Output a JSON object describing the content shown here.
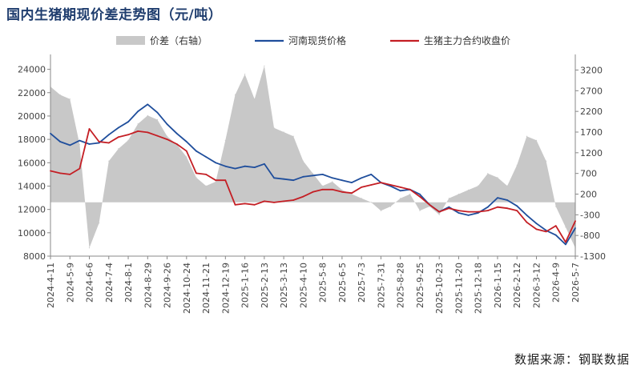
{
  "title": "国内生猪期现价差走势图（元/吨）",
  "source": "数据来源：钢联数据",
  "chart_data": {
    "type": "line",
    "title": "国内生猪期现价差走势图（元/吨）",
    "colors": {
      "basis": "#c8c8c8",
      "spot": "#1f4e9c",
      "futures": "#c41e24"
    },
    "left_axis": {
      "ylim": [
        8000,
        25000
      ],
      "ticks": [
        "8000",
        "10000",
        "12000",
        "14000",
        "16000",
        "18000",
        "20000",
        "22000",
        "24000"
      ]
    },
    "right_axis": {
      "ylim": [
        -1300,
        3500
      ],
      "ticks": [
        "-1300",
        "-800",
        "-300",
        "200",
        "700",
        "1200",
        "1700",
        "2200",
        "2700",
        "3200"
      ]
    },
    "x_ticks": [
      "2024-4-11",
      "2024-5-9",
      "2024-6-6",
      "2024-7-4",
      "2024-8-1",
      "2024-8-29",
      "2024-9-26",
      "2024-10-24",
      "2024-11-21",
      "2024-12-19",
      "2025-1-16",
      "2025-2-13",
      "2025-3-13",
      "2025-4-10",
      "2025-5-8",
      "2025-6-5",
      "2025-7-3",
      "2025-7-31",
      "2025-8-28",
      "2025-9-25",
      "2025-10-23",
      "2025-11-20",
      "2025-12-18",
      "2026-1-15",
      "2026-2-12",
      "2026-3-12",
      "2026-4-9",
      "2026-5-7"
    ],
    "grid": false,
    "legend_position": "top",
    "series": [
      {
        "name": "价差（右轴）",
        "axis": "right",
        "kind": "area",
        "x": [
          "2024-4-11",
          "2024-4-25",
          "2024-5-9",
          "2024-5-23",
          "2024-6-6",
          "2024-6-20",
          "2024-7-4",
          "2024-7-18",
          "2024-8-1",
          "2024-8-15",
          "2024-8-29",
          "2024-9-12",
          "2024-9-26",
          "2024-10-10",
          "2024-10-24",
          "2024-11-7",
          "2024-11-21",
          "2024-12-5",
          "2024-12-19",
          "2025-1-2",
          "2025-1-16",
          "2025-1-30",
          "2025-2-13",
          "2025-2-27",
          "2025-3-13",
          "2025-3-27",
          "2025-4-10",
          "2025-4-24",
          "2025-5-8",
          "2025-5-22",
          "2025-6-5",
          "2025-6-19",
          "2025-7-3",
          "2025-7-17",
          "2025-7-31",
          "2025-8-14",
          "2025-8-28",
          "2025-9-11",
          "2025-9-25",
          "2025-10-9",
          "2025-10-23",
          "2025-11-6",
          "2025-11-20",
          "2025-12-4",
          "2025-12-18",
          "2026-1-1",
          "2026-1-15",
          "2026-1-29",
          "2026-2-12",
          "2026-2-26",
          "2026-3-12",
          "2026-3-26",
          "2026-4-9",
          "2026-4-23",
          "2026-5-7"
        ],
        "values": [
          2800,
          2600,
          2500,
          1400,
          -1100,
          -500,
          1000,
          1300,
          1500,
          1900,
          2100,
          2000,
          1600,
          1400,
          1100,
          600,
          400,
          500,
          1500,
          2600,
          3100,
          2500,
          3300,
          1800,
          1700,
          1600,
          1000,
          700,
          400,
          500,
          300,
          200,
          100,
          0,
          -200,
          -100,
          100,
          200,
          -200,
          -100,
          -300,
          100,
          200,
          300,
          400,
          700,
          600,
          400,
          900,
          1600,
          1500,
          1000,
          -100,
          -600,
          -1100
        ]
      },
      {
        "name": "河南现货价格",
        "axis": "left",
        "kind": "line",
        "x": [
          "2024-4-11",
          "2024-4-25",
          "2024-5-9",
          "2024-5-23",
          "2024-6-6",
          "2024-6-20",
          "2024-7-4",
          "2024-7-18",
          "2024-8-1",
          "2024-8-15",
          "2024-8-29",
          "2024-9-12",
          "2024-9-26",
          "2024-10-10",
          "2024-10-24",
          "2024-11-7",
          "2024-11-21",
          "2024-12-5",
          "2024-12-19",
          "2025-1-2",
          "2025-1-16",
          "2025-1-30",
          "2025-2-13",
          "2025-2-27",
          "2025-3-13",
          "2025-3-27",
          "2025-4-10",
          "2025-4-24",
          "2025-5-8",
          "2025-5-22",
          "2025-6-5",
          "2025-6-19",
          "2025-7-3",
          "2025-7-17",
          "2025-7-31",
          "2025-8-14",
          "2025-8-28",
          "2025-9-11",
          "2025-9-25",
          "2025-10-9",
          "2025-10-23",
          "2025-11-6",
          "2025-11-20",
          "2025-12-4",
          "2025-12-18",
          "2026-1-1",
          "2026-1-15",
          "2026-1-29",
          "2026-2-12",
          "2026-2-26",
          "2026-3-12",
          "2026-3-26",
          "2026-4-9",
          "2026-4-23",
          "2026-5-7"
        ],
        "values": [
          18500,
          17800,
          17500,
          17900,
          17600,
          17700,
          18400,
          19000,
          19500,
          20400,
          21000,
          20300,
          19300,
          18500,
          17800,
          17000,
          16500,
          16000,
          15700,
          15500,
          15700,
          15600,
          15900,
          14700,
          14600,
          14500,
          14800,
          14900,
          15000,
          14700,
          14500,
          14300,
          14700,
          15000,
          14300,
          14000,
          13600,
          13700,
          13300,
          12400,
          11800,
          12200,
          11700,
          11500,
          11700,
          12200,
          13000,
          12800,
          12300,
          11500,
          10800,
          10200,
          9800,
          9000,
          10400
        ]
      },
      {
        "name": "生猪主力合约收盘价",
        "axis": "left",
        "kind": "line",
        "x": [
          "2024-4-11",
          "2024-4-25",
          "2024-5-9",
          "2024-5-23",
          "2024-6-6",
          "2024-6-20",
          "2024-7-4",
          "2024-7-18",
          "2024-8-1",
          "2024-8-15",
          "2024-8-29",
          "2024-9-12",
          "2024-9-26",
          "2024-10-10",
          "2024-10-24",
          "2024-11-7",
          "2024-11-21",
          "2024-12-5",
          "2024-12-19",
          "2025-1-2",
          "2025-1-16",
          "2025-1-30",
          "2025-2-13",
          "2025-2-27",
          "2025-3-13",
          "2025-3-27",
          "2025-4-10",
          "2025-4-24",
          "2025-5-8",
          "2025-5-22",
          "2025-6-5",
          "2025-6-19",
          "2025-7-3",
          "2025-7-17",
          "2025-7-31",
          "2025-8-14",
          "2025-8-28",
          "2025-9-11",
          "2025-9-25",
          "2025-10-9",
          "2025-10-23",
          "2025-11-6",
          "2025-11-20",
          "2025-12-4",
          "2025-12-18",
          "2026-1-1",
          "2026-1-15",
          "2026-1-29",
          "2026-2-12",
          "2026-2-26",
          "2026-3-12",
          "2026-3-26",
          "2026-4-9",
          "2026-4-23",
          "2026-5-7"
        ],
        "values": [
          15300,
          15100,
          15000,
          15500,
          18900,
          17800,
          17700,
          18200,
          18400,
          18700,
          18600,
          18300,
          18000,
          17600,
          17000,
          15100,
          15000,
          14500,
          14500,
          12400,
          12500,
          12400,
          12700,
          12600,
          12700,
          12800,
          13100,
          13500,
          13700,
          13700,
          13500,
          13400,
          13900,
          14100,
          14300,
          14100,
          13900,
          13700,
          13100,
          12400,
          11800,
          12100,
          11900,
          11800,
          11800,
          11900,
          12200,
          12100,
          11900,
          10900,
          10300,
          10100,
          10600,
          9200,
          11000
        ]
      }
    ]
  }
}
